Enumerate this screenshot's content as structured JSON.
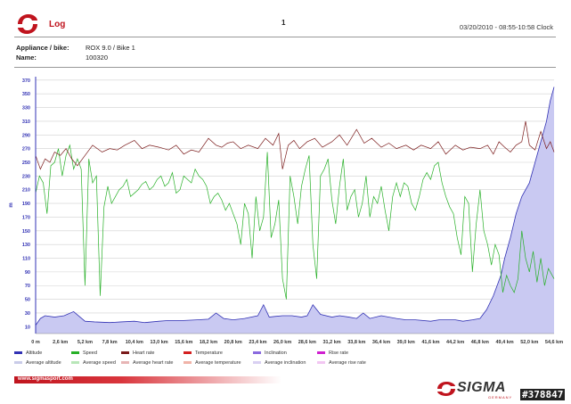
{
  "header": {
    "title": "Log",
    "page_number": "1",
    "datetime": "03/20/2010 - 08:55-10:58 Clock"
  },
  "info": {
    "appliance_label": "Appliance / bike:",
    "appliance_value": "ROX 9.0 / Bike 1",
    "name_label": "Name:",
    "name_value": "100320"
  },
  "footer": {
    "url": "www.sigmasport.com",
    "brand": "SIGMA",
    "brand_sub": "GERMANY",
    "watermark": "#378847"
  },
  "colors": {
    "accent": "#c0141e",
    "altitude_fill": "#c9c9f2",
    "altitude_line": "#3232b4",
    "speed": "#27b027",
    "heart_rate": "#7a1a1a"
  },
  "chart_data": {
    "type": "line",
    "ylabel": "m",
    "ylim": [
      0,
      375
    ],
    "yticks": [
      10,
      30,
      50,
      70,
      90,
      110,
      130,
      150,
      170,
      190,
      210,
      230,
      250,
      270,
      290,
      310,
      330,
      350,
      370
    ],
    "xlim": [
      0,
      54.6
    ],
    "xticks": [
      "0 m",
      "2,6 km",
      "5,2 km",
      "7,8 km",
      "10,4 km",
      "13,0 km",
      "15,6 km",
      "18,2 km",
      "20,8 km",
      "23,4 km",
      "26,0 km",
      "28,6 km",
      "31,2 km",
      "33,8 km",
      "36,4 km",
      "39,0 km",
      "41,6 km",
      "44,2 km",
      "46,8 km",
      "49,4 km",
      "52,0 km",
      "54,6 km"
    ],
    "grid": true,
    "legend": [
      {
        "name": "Altitude",
        "color": "#3232b4"
      },
      {
        "name": "Speed",
        "color": "#27b027"
      },
      {
        "name": "Heart rate",
        "color": "#7a1a1a"
      },
      {
        "name": "Temperature",
        "color": "#d42020"
      },
      {
        "name": "Inclination",
        "color": "#8a6adf"
      },
      {
        "name": "Rise rate",
        "color": "#d020d0"
      },
      {
        "name": "Average altitude",
        "color": "#c9cbe8"
      },
      {
        "name": "Average speed",
        "color": "#b8e6b8"
      },
      {
        "name": "Average heart rate",
        "color": "#e7b5b5"
      },
      {
        "name": "Average temperature",
        "color": "#f0b3a8"
      },
      {
        "name": "Average inclination",
        "color": "#d9d0f2"
      },
      {
        "name": "Average rise rate",
        "color": "#f2c6f2"
      }
    ],
    "series": [
      {
        "name": "Altitude",
        "x": [
          0,
          0.5,
          1.0,
          2.0,
          3.0,
          4.0,
          5.2,
          6.2,
          7.8,
          9.0,
          10.4,
          11.5,
          13.0,
          14.0,
          15.6,
          17.0,
          18.2,
          19.0,
          19.8,
          20.8,
          22.0,
          23.4,
          24.0,
          24.6,
          25.2,
          26.0,
          27.0,
          28.0,
          28.6,
          29.2,
          30.0,
          31.2,
          32.0,
          33.0,
          33.8,
          34.5,
          35.2,
          36.4,
          38.0,
          39.0,
          40.0,
          41.6,
          42.5,
          43.5,
          44.2,
          45.0,
          46.0,
          46.8,
          47.5,
          48.2,
          49.0,
          49.4,
          50.0,
          50.6,
          51.2,
          52.0,
          52.6,
          53.2,
          53.8,
          54.2,
          54.6
        ],
        "values": [
          12,
          22,
          26,
          24,
          26,
          32,
          18,
          17,
          16,
          17,
          18,
          16,
          18,
          19,
          19,
          20,
          21,
          30,
          22,
          20,
          22,
          26,
          42,
          24,
          25,
          26,
          26,
          24,
          26,
          42,
          28,
          24,
          26,
          24,
          22,
          30,
          22,
          26,
          22,
          20,
          20,
          18,
          20,
          20,
          20,
          18,
          20,
          22,
          35,
          55,
          85,
          110,
          140,
          175,
          200,
          220,
          250,
          280,
          310,
          340,
          360
        ]
      },
      {
        "name": "Speed",
        "x": [
          0,
          0.4,
          0.8,
          1.2,
          1.6,
          2.0,
          2.4,
          2.8,
          3.2,
          3.6,
          4.0,
          4.4,
          4.8,
          5.2,
          5.6,
          6.0,
          6.4,
          6.8,
          7.2,
          7.6,
          8.0,
          8.4,
          8.8,
          9.2,
          9.6,
          10.0,
          10.4,
          10.8,
          11.2,
          11.6,
          12.0,
          12.4,
          12.8,
          13.2,
          13.6,
          14.0,
          14.4,
          14.8,
          15.2,
          15.6,
          16.0,
          16.4,
          16.8,
          17.2,
          17.6,
          18.0,
          18.4,
          18.8,
          19.2,
          19.6,
          20.0,
          20.4,
          20.8,
          21.2,
          21.6,
          22.0,
          22.4,
          22.8,
          23.2,
          23.6,
          24.0,
          24.4,
          24.8,
          25.2,
          25.6,
          26.0,
          26.4,
          26.8,
          27.2,
          27.6,
          28.0,
          28.4,
          28.8,
          29.2,
          29.6,
          30.0,
          30.4,
          30.8,
          31.2,
          31.6,
          32.0,
          32.4,
          32.8,
          33.2,
          33.6,
          34.0,
          34.4,
          34.8,
          35.2,
          35.6,
          36.0,
          36.4,
          36.8,
          37.2,
          37.6,
          38.0,
          38.4,
          38.8,
          39.2,
          39.6,
          40.0,
          40.4,
          40.8,
          41.2,
          41.6,
          42.0,
          42.4,
          42.8,
          43.2,
          43.6,
          44.0,
          44.4,
          44.8,
          45.2,
          45.6,
          46.0,
          46.4,
          46.8,
          47.2,
          47.6,
          48.0,
          48.4,
          48.8,
          49.2,
          49.6,
          50.0,
          50.4,
          50.8,
          51.2,
          51.6,
          52.0,
          52.4,
          52.8,
          53.2,
          53.6,
          54.0,
          54.6
        ],
        "values": [
          205,
          230,
          220,
          175,
          245,
          250,
          270,
          230,
          260,
          275,
          240,
          255,
          240,
          70,
          255,
          220,
          230,
          55,
          185,
          215,
          190,
          200,
          210,
          215,
          225,
          200,
          205,
          210,
          218,
          222,
          210,
          215,
          225,
          230,
          215,
          220,
          235,
          205,
          210,
          230,
          225,
          220,
          240,
          230,
          225,
          215,
          190,
          200,
          205,
          195,
          180,
          190,
          175,
          160,
          130,
          190,
          175,
          110,
          200,
          150,
          170,
          265,
          140,
          160,
          195,
          80,
          50,
          230,
          200,
          160,
          215,
          240,
          260,
          130,
          80,
          230,
          240,
          255,
          195,
          160,
          215,
          255,
          180,
          200,
          210,
          170,
          190,
          230,
          170,
          200,
          190,
          215,
          180,
          150,
          200,
          220,
          200,
          220,
          215,
          190,
          180,
          200,
          225,
          235,
          225,
          245,
          250,
          220,
          200,
          185,
          175,
          140,
          115,
          200,
          190,
          90,
          160,
          210,
          150,
          130,
          100,
          130,
          115,
          60,
          85,
          70,
          60,
          80,
          150,
          110,
          90,
          120,
          75,
          110,
          70,
          95,
          80
        ]
      },
      {
        "name": "Heart rate",
        "x": [
          0,
          0.5,
          1.0,
          1.5,
          2.0,
          2.6,
          3.2,
          3.8,
          4.4,
          5.2,
          6.0,
          7.0,
          7.8,
          8.6,
          9.4,
          10.4,
          11.2,
          12.0,
          13.0,
          14.0,
          14.8,
          15.6,
          16.4,
          17.2,
          18.2,
          19.0,
          19.6,
          20.2,
          20.8,
          21.6,
          22.4,
          23.4,
          24.2,
          25.0,
          25.6,
          26.0,
          26.6,
          27.2,
          27.8,
          28.6,
          29.4,
          30.2,
          31.2,
          32.0,
          32.8,
          33.8,
          34.6,
          35.4,
          36.4,
          37.2,
          38.0,
          39.0,
          39.8,
          40.6,
          41.6,
          42.4,
          43.2,
          44.2,
          45.0,
          45.8,
          46.8,
          47.6,
          48.2,
          48.8,
          49.4,
          50.0,
          50.6,
          51.2,
          51.6,
          52.0,
          52.6,
          53.2,
          53.8,
          54.2,
          54.6
        ],
        "values": [
          260,
          240,
          255,
          250,
          265,
          260,
          270,
          255,
          245,
          260,
          275,
          265,
          270,
          268,
          275,
          282,
          270,
          275,
          272,
          268,
          275,
          262,
          268,
          265,
          285,
          275,
          272,
          278,
          280,
          270,
          275,
          270,
          285,
          275,
          292,
          240,
          275,
          282,
          270,
          280,
          285,
          272,
          280,
          290,
          275,
          298,
          278,
          285,
          272,
          278,
          270,
          275,
          268,
          275,
          270,
          280,
          262,
          275,
          268,
          272,
          270,
          275,
          262,
          280,
          272,
          265,
          275,
          280,
          310,
          275,
          268,
          295,
          270,
          280,
          265
        ]
      }
    ]
  }
}
